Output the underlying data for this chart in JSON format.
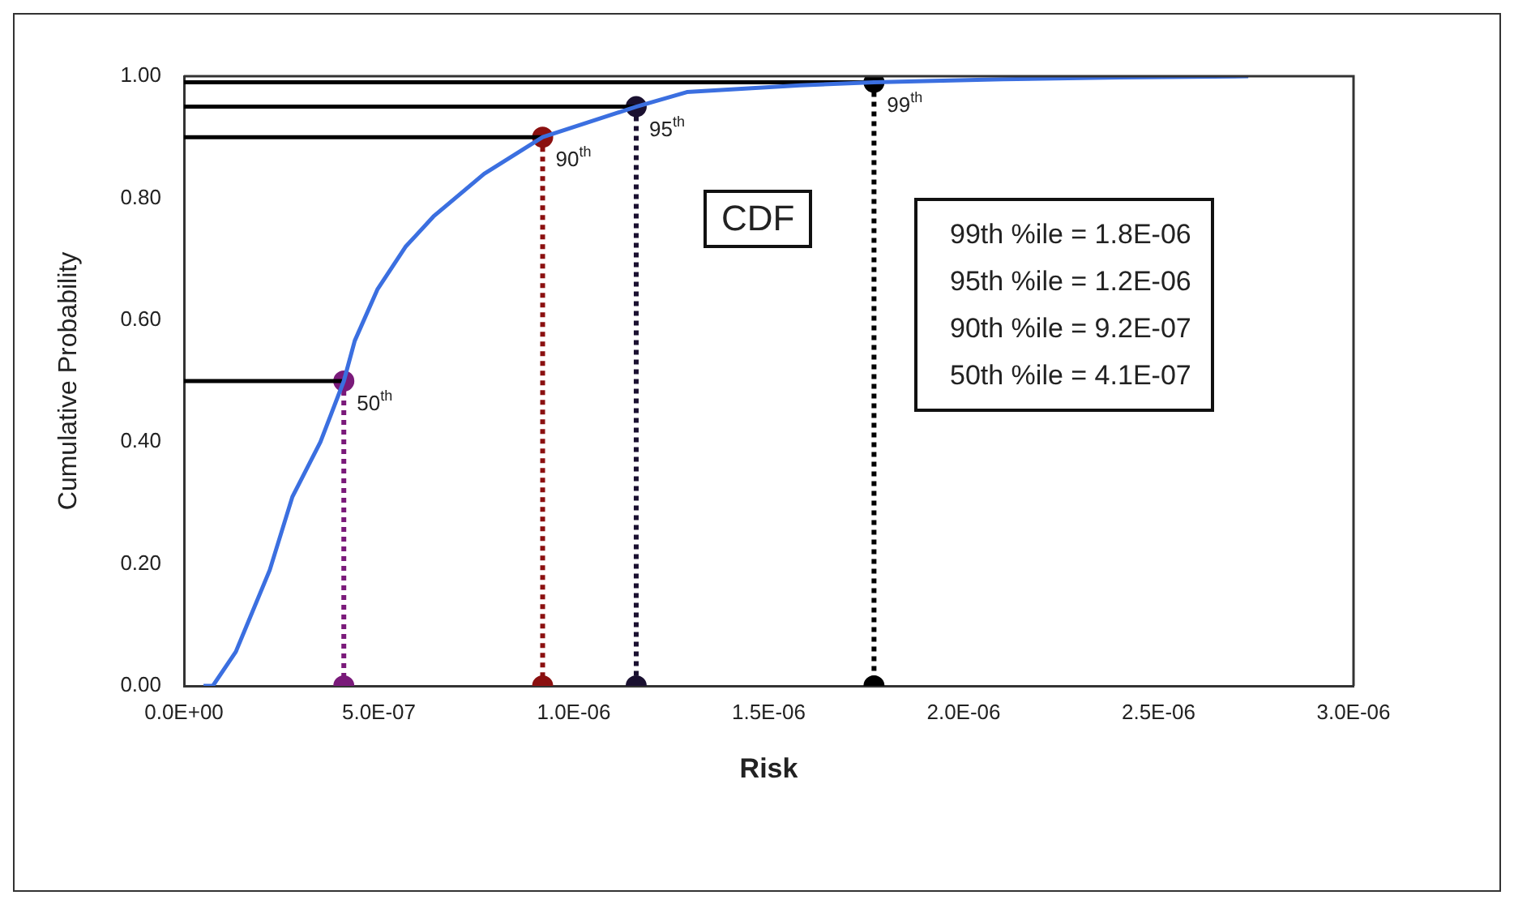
{
  "chart_data": {
    "type": "line",
    "xlabel": "Risk",
    "ylabel": "Cumulative Probability",
    "xlim": [
      0,
      3e-06
    ],
    "xticks": [
      {
        "value": 0,
        "label": "0.0E+00"
      },
      {
        "value": 5e-07,
        "label": "5.0E-07"
      },
      {
        "value": 1e-06,
        "label": "1.0E-06"
      },
      {
        "value": 1.5e-06,
        "label": "1.5E-06"
      },
      {
        "value": 2e-06,
        "label": "2.0E-06"
      },
      {
        "value": 2.5e-06,
        "label": "2.5E-06"
      },
      {
        "value": 3e-06,
        "label": "3.0E-06"
      }
    ],
    "ylim": [
      0,
      1
    ],
    "yticks": [
      {
        "value": 0,
        "label": "0.00"
      },
      {
        "value": 0.2,
        "label": "0.20"
      },
      {
        "value": 0.4,
        "label": "0.40"
      },
      {
        "value": 0.6,
        "label": "0.60"
      },
      {
        "value": 0.8,
        "label": "0.80"
      },
      {
        "value": 1,
        "label": "1.00"
      }
    ],
    "grid": false,
    "legend": false,
    "series": [
      {
        "color": "#3b6fe0",
        "marker": "none",
        "line_style": "solid",
        "x": [
          5e-08,
          7.4e-08,
          1.33e-07,
          2.2e-07,
          2.78e-07,
          3.5e-07,
          4.1e-07,
          4.38e-07,
          4.96e-07,
          5.68e-07,
          6.4e-07,
          7.7e-07,
          9.2e-07,
          1.16e-06,
          1.29e-06,
          1.58e-06,
          1.77e-06,
          2.1e-06,
          2.4e-06,
          2.73e-06
        ],
        "values": [
          0,
          0,
          0.056,
          0.19,
          0.31,
          0.4,
          0.5,
          0.566,
          0.65,
          0.72,
          0.77,
          0.84,
          0.9,
          0.95,
          0.974,
          0.985,
          0.99,
          0.995,
          0.998,
          1
        ]
      },
      {
        "color": "#000000",
        "line_style": "solid",
        "x": [
          0,
          4.1e-07
        ],
        "values": [
          0.5,
          0.5
        ]
      },
      {
        "color": "#000000",
        "line_style": "solid",
        "x": [
          0,
          9.2e-07
        ],
        "values": [
          0.9,
          0.9
        ]
      },
      {
        "color": "#000000",
        "line_style": "solid",
        "x": [
          0,
          1.16e-06
        ],
        "values": [
          0.95,
          0.95
        ]
      },
      {
        "color": "#000000",
        "line_style": "solid",
        "x": [
          0,
          1.77e-06
        ],
        "values": [
          0.99,
          0.99
        ]
      },
      {
        "color": "#7a1a7a",
        "marker": "circle",
        "line_style": "dotted",
        "x": [
          4.1e-07,
          4.1e-07
        ],
        "values": [
          0.5,
          0
        ]
      },
      {
        "color": "#8b1010",
        "marker": "circle",
        "line_style": "dotted",
        "x": [
          9.2e-07,
          9.2e-07
        ],
        "values": [
          0.9,
          0
        ]
      },
      {
        "color": "#1a1030",
        "marker": "circle",
        "line_style": "dotted",
        "x": [
          1.16e-06,
          1.16e-06
        ],
        "values": [
          0.95,
          0
        ]
      },
      {
        "color": "#000000",
        "marker": "circle",
        "line_style": "dotted",
        "x": [
          1.77e-06,
          1.77e-06
        ],
        "values": [
          0.99,
          0
        ]
      }
    ],
    "annotations": [
      "CDF",
      "99th %ile = 1.8E-06",
      "95th %ile = 1.2E-06",
      "90th %ile = 9.2E-07",
      "50th %ile = 4.1E-07",
      {
        "text": "50$^{th}$",
        "x": 4.1e-07,
        "y": 0.5
      },
      {
        "text": "90$^{th}$",
        "x": 9.2e-07,
        "y": 0.9
      },
      {
        "text": "95$^{th}$",
        "x": 1.16e-06,
        "y": 0.95
      },
      {
        "text": "99$^{th}$",
        "x": 1.77e-06,
        "y": 0.99
      }
    ]
  }
}
